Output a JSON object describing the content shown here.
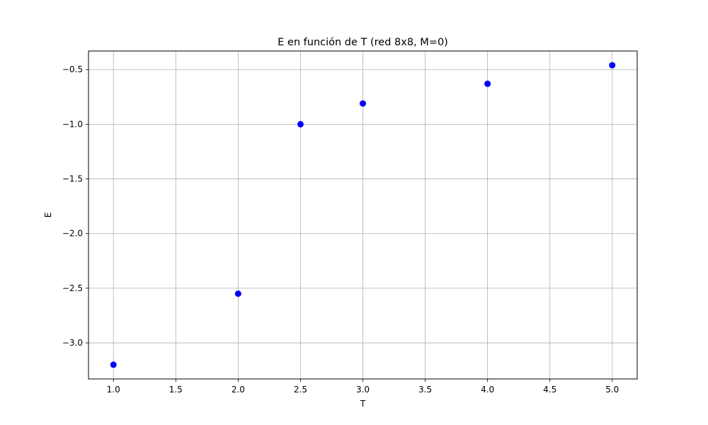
{
  "chart_data": {
    "type": "scatter",
    "title": "E en función de T (red 8x8, M=0)",
    "xlabel": "T",
    "ylabel": "E",
    "xlim": [
      0.8,
      5.2
    ],
    "ylim": [
      -3.33,
      -0.33
    ],
    "xticks": [
      1.0,
      1.5,
      2.0,
      2.5,
      3.0,
      3.5,
      4.0,
      4.5,
      5.0
    ],
    "xtick_labels": [
      "1.0",
      "1.5",
      "2.0",
      "2.5",
      "3.0",
      "3.5",
      "4.0",
      "4.5",
      "5.0"
    ],
    "yticks": [
      -3.0,
      -2.5,
      -2.0,
      -1.5,
      -1.0,
      -0.5
    ],
    "ytick_labels": [
      "−3.0",
      "−2.5",
      "−2.0",
      "−1.5",
      "−1.0",
      "−0.5"
    ],
    "grid": true,
    "marker_color": "#0000ff",
    "series": [
      {
        "x": [
          1.0,
          2.0,
          2.5,
          3.0,
          4.0,
          5.0
        ],
        "y": [
          -3.2,
          -2.55,
          -1.0,
          -0.81,
          -0.63,
          -0.46
        ]
      }
    ]
  }
}
